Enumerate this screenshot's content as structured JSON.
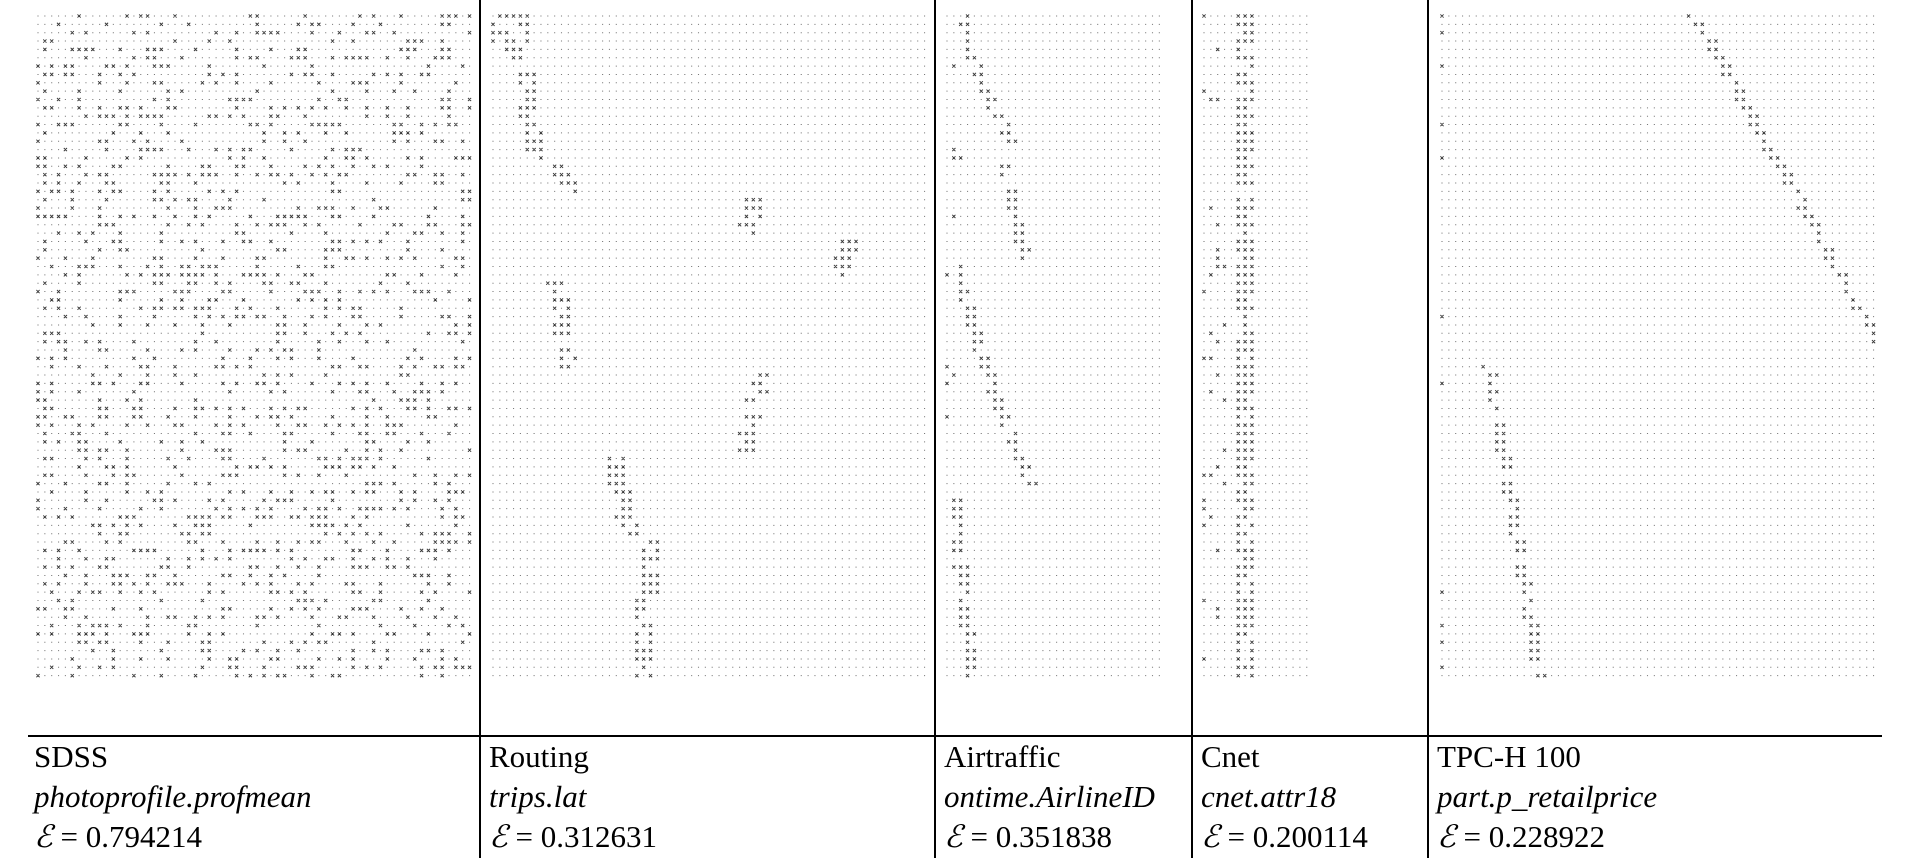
{
  "panels": [
    {
      "dataset": "SDSS",
      "column": "photoprofile.profmean",
      "entropy_symbol": "ℰ",
      "entropy_value": "= 0.794214",
      "pattern": "random",
      "cols": 64
    },
    {
      "dataset": "Routing",
      "column": "trips.lat",
      "entropy_symbol": "ℰ",
      "entropy_value": "= 0.312631",
      "pattern": "clustered",
      "cols": 64
    },
    {
      "dataset": "Airtraffic",
      "column": "ontime.AirlineID",
      "entropy_symbol": "ℰ",
      "entropy_value": "= 0.351838",
      "pattern": "clustered",
      "cols": 32
    },
    {
      "dataset": "Cnet",
      "column": "cnet.attr18",
      "entropy_symbol": "ℰ",
      "entropy_value": "= 0.200114",
      "pattern": "band",
      "cols": 16
    },
    {
      "dataset": "TPC-H 100",
      "column": "part.p_retailprice",
      "entropy_symbol": "ℰ",
      "entropy_value": "= 0.228922",
      "pattern": "diagonal",
      "cols": 64
    }
  ],
  "legend": {
    "empty_cell": ".",
    "filled_cell": "x"
  },
  "rows": 80
}
